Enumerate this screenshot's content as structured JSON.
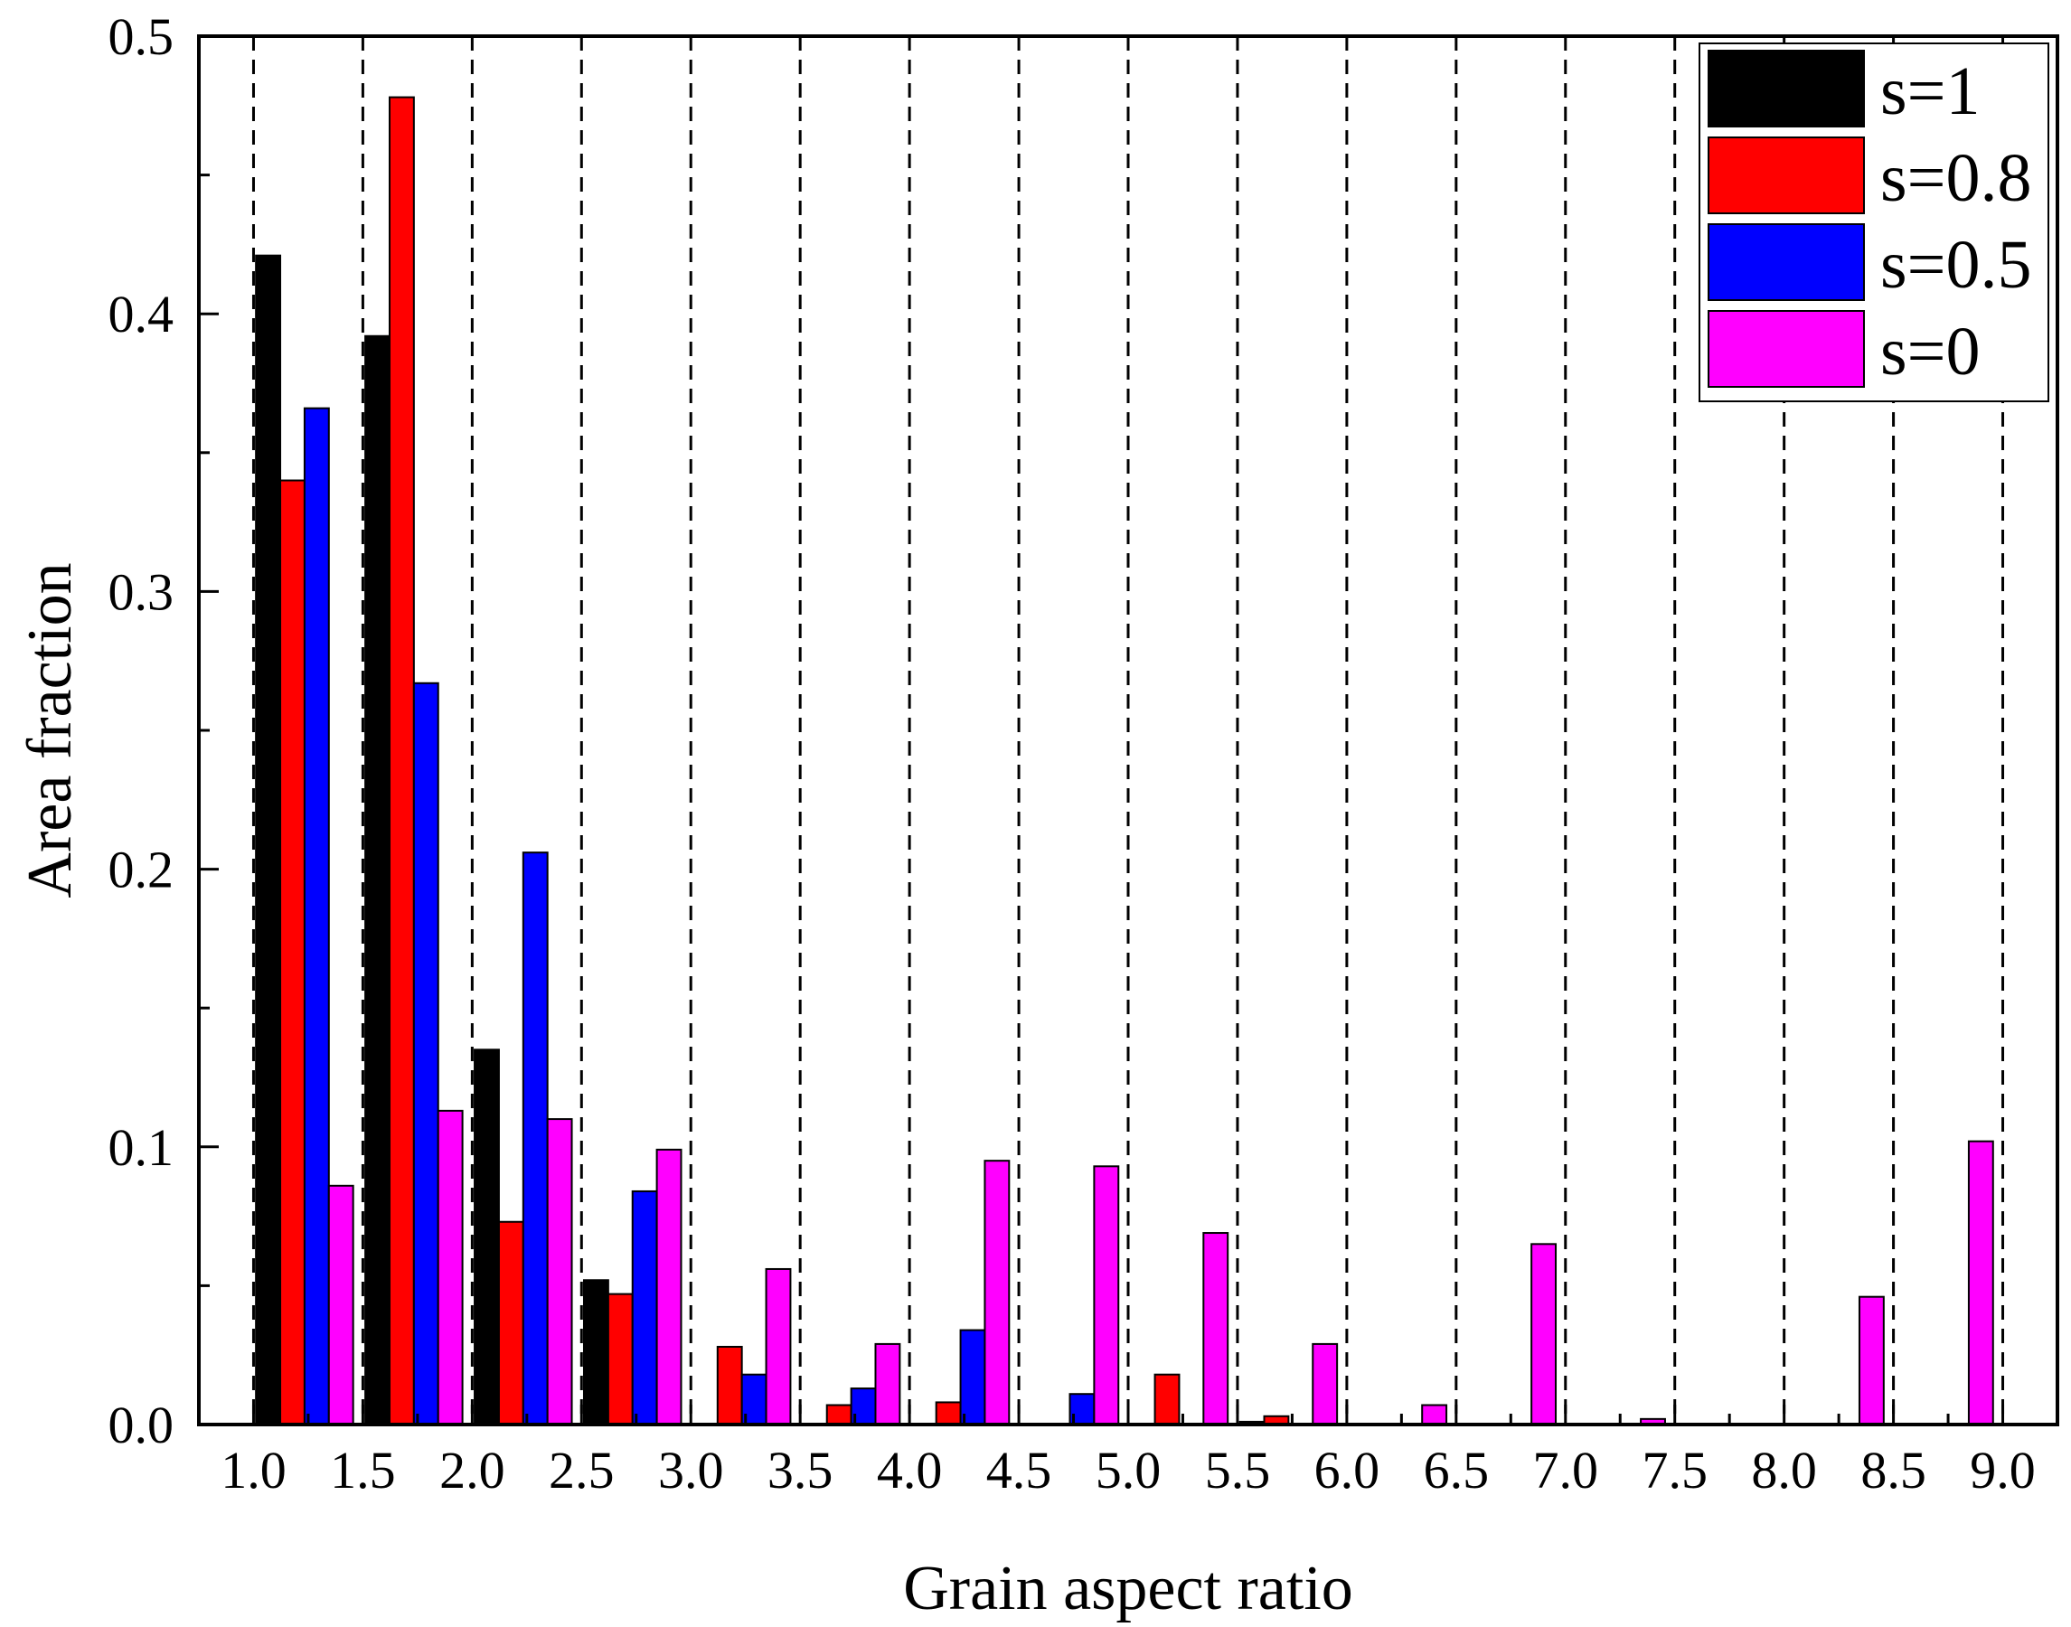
{
  "chart_data": {
    "type": "bar",
    "title": "",
    "xlabel": "Grain aspect ratio",
    "ylabel": "Area fraction",
    "xlim": [
      0.75,
      9.25
    ],
    "ylim": [
      0,
      0.5
    ],
    "x_ticks": [
      "1.0",
      "1.5",
      "2.0",
      "2.5",
      "3.0",
      "3.5",
      "4.0",
      "4.5",
      "5.0",
      "5.5",
      "6.0",
      "6.5",
      "7.0",
      "7.5",
      "8.0",
      "8.5",
      "9.0"
    ],
    "y_ticks": [
      "0.0",
      "0.1",
      "0.2",
      "0.3",
      "0.4",
      "0.5"
    ],
    "bin_edges": [
      1.0,
      1.5,
      2.0,
      2.5,
      3.0,
      3.5,
      4.0,
      4.5,
      5.0,
      5.5,
      6.0,
      6.5,
      7.0,
      7.5,
      8.0,
      8.5,
      9.0
    ],
    "grid": "vertical dashed lines at bin edges",
    "legend_position": "top-right",
    "series": [
      {
        "name": "s=1",
        "color": "#000000",
        "values": [
          0.421,
          0.392,
          0.135,
          0.052,
          0,
          0,
          0,
          0,
          0,
          0.001,
          0,
          0,
          0,
          0,
          0,
          0
        ]
      },
      {
        "name": "s=0.8",
        "color": "#ff0000",
        "values": [
          0.34,
          0.478,
          0.073,
          0.047,
          0.028,
          0.007,
          0.008,
          0,
          0.018,
          0.003,
          0,
          0,
          0,
          0,
          0,
          0
        ]
      },
      {
        "name": "s=0.5",
        "color": "#0000ff",
        "values": [
          0.366,
          0.267,
          0.206,
          0.084,
          0.018,
          0.013,
          0.034,
          0.011,
          0,
          0,
          0,
          0,
          0,
          0,
          0,
          0
        ]
      },
      {
        "name": "s=0",
        "color": "#ff00ff",
        "values": [
          0.086,
          0.113,
          0.11,
          0.099,
          0.056,
          0.029,
          0.095,
          0.093,
          0.069,
          0.029,
          0.007,
          0.065,
          0.002,
          0,
          0.046,
          0.102
        ]
      }
    ]
  }
}
